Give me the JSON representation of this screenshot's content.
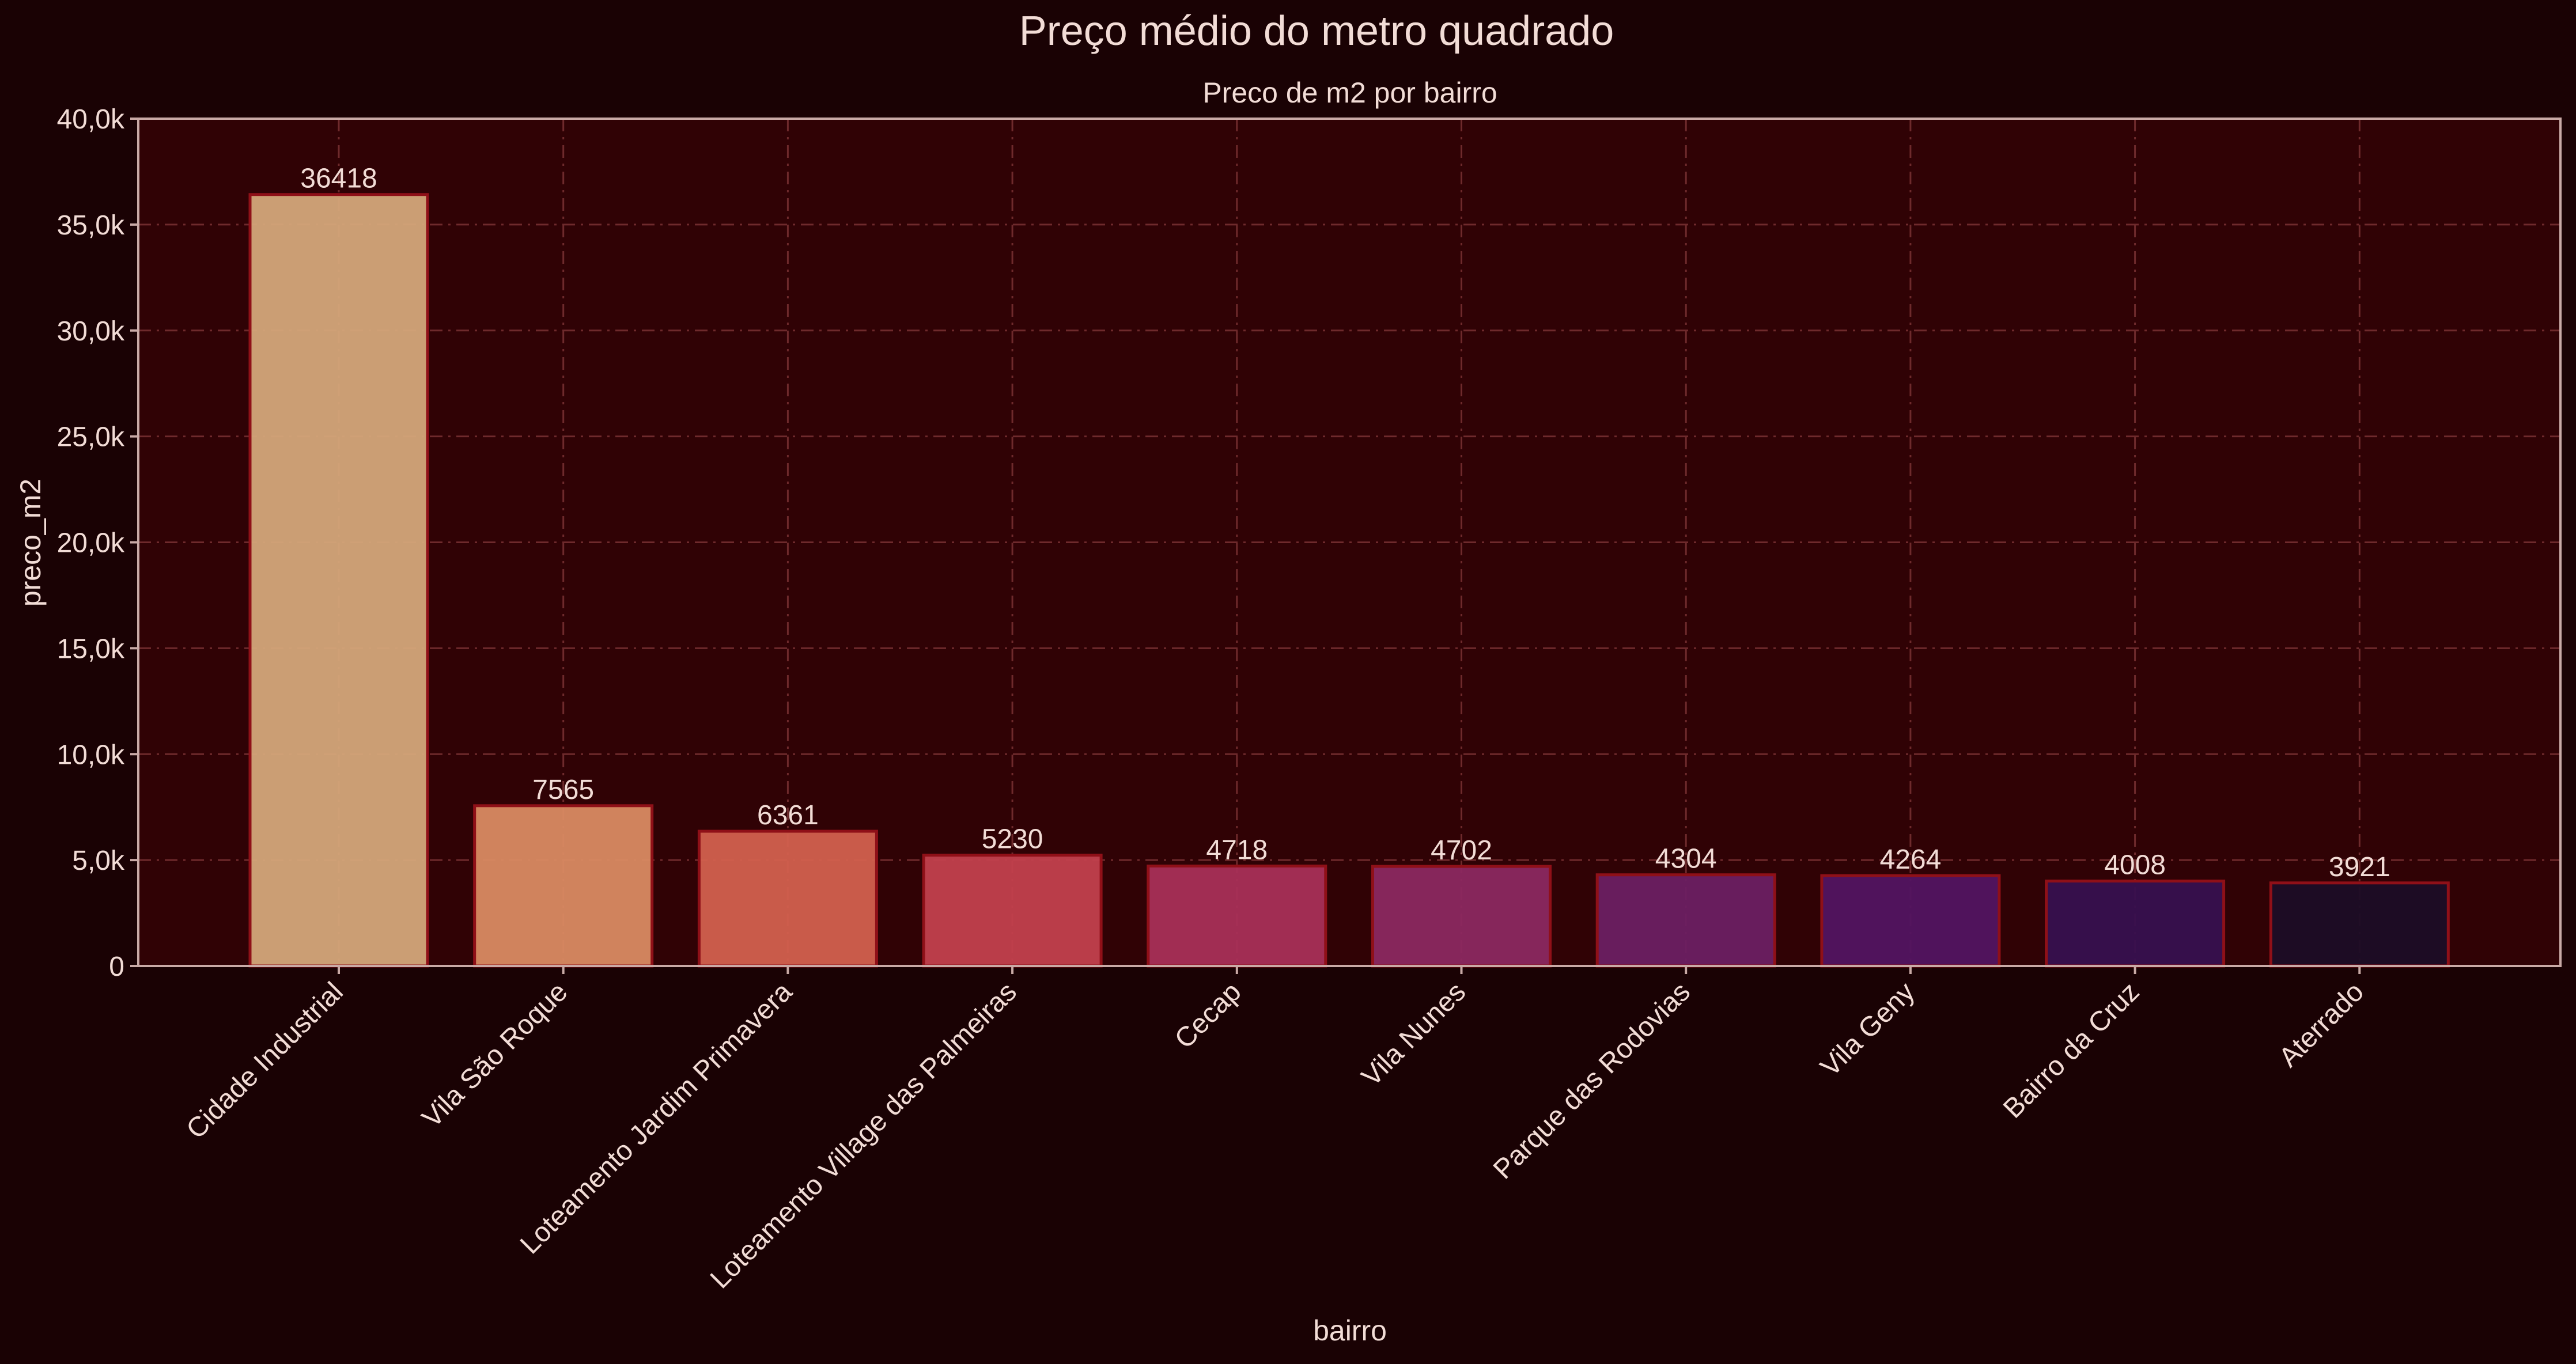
{
  "chart_data": {
    "type": "bar",
    "title": "Preço médio do metro quadrado",
    "subtitle": "Preco de m2 por bairro",
    "xlabel": "bairro",
    "ylabel": "preco_m2",
    "ylim": [
      0,
      40000
    ],
    "yticks": [
      0,
      5000,
      10000,
      15000,
      20000,
      25000,
      30000,
      35000,
      40000
    ],
    "ytick_labels": [
      "0",
      "5,0k",
      "10,0k",
      "15,0k",
      "20,0k",
      "25,0k",
      "30,0k",
      "35,0k",
      "40,0k"
    ],
    "grid": true,
    "categories": [
      "Cidade Industrial",
      "Vila São Roque",
      "Loteamento Jardim Primavera",
      "Loteamento Village das Palmeiras",
      "Cecap",
      "Vila Nunes",
      "Parque das Rodovias",
      "Vila Geny",
      "Bairro da Cruz",
      "Aterrado"
    ],
    "values": [
      36418,
      7565,
      6361,
      5230,
      4718,
      4702,
      4304,
      4264,
      4008,
      3921
    ],
    "data_labels": [
      "36418",
      "7565",
      "6361",
      "5230",
      "4718",
      "4702",
      "4304",
      "4264",
      "4008",
      "3921"
    ],
    "bar_colors": [
      "#d4a67a",
      "#d98a62",
      "#d2604e",
      "#c2404d",
      "#a82f57",
      "#8b2860",
      "#6c1f62",
      "#521461",
      "#37104f",
      "#1c0d26"
    ],
    "colors": {
      "background": "#1a0204",
      "plot_background": "#300205",
      "text": "#f2dcd6",
      "bar_edge": "#8f1018",
      "grid": "#6e2a2c",
      "axis": "#c9aaa6"
    }
  }
}
